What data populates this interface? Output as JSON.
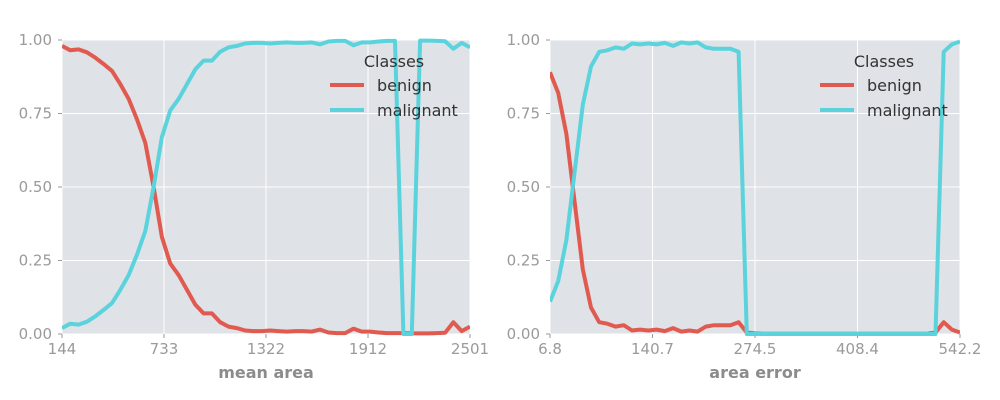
{
  "colors": {
    "plot_background": "#dfe2e6",
    "grid": "#ffffff",
    "tick_text": "#9a9a9a",
    "benign": "#e05a4f",
    "malignant": "#5ad3dc"
  },
  "chart_data": [
    {
      "type": "line",
      "title": "",
      "xlabel": "mean area",
      "ylabel": "",
      "xlim": [
        144,
        2501
      ],
      "ylim": [
        0,
        1
      ],
      "xticks": [
        "144",
        "733",
        "1322",
        "1912",
        "2501"
      ],
      "yticks": [
        "0.00",
        "0.25",
        "0.50",
        "0.75",
        "1.00"
      ],
      "grid": true,
      "legend": {
        "title": "Classes",
        "placement": "top-right"
      },
      "series": [
        {
          "name": "benign",
          "x": [
            144,
            192,
            240,
            288,
            336,
            385,
            433,
            481,
            529,
            577,
            625,
            673,
            721,
            769,
            818,
            866,
            914,
            962,
            1010,
            1058,
            1106,
            1154,
            1202,
            1250,
            1299,
            1347,
            1395,
            1443,
            1491,
            1539,
            1587,
            1635,
            1683,
            1732,
            1780,
            1828,
            1876,
            1924,
            1972,
            2020,
            2068,
            2116,
            2165,
            2213,
            2261,
            2309,
            2357,
            2405,
            2453,
            2501
          ],
          "y": [
            0.98,
            0.965,
            0.968,
            0.958,
            0.94,
            0.918,
            0.895,
            0.85,
            0.8,
            0.73,
            0.65,
            0.5,
            0.33,
            0.24,
            0.2,
            0.15,
            0.1,
            0.07,
            0.07,
            0.04,
            0.025,
            0.02,
            0.012,
            0.01,
            0.01,
            0.012,
            0.01,
            0.008,
            0.01,
            0.01,
            0.008,
            0.015,
            0.005,
            0.003,
            0.003,
            0.018,
            0.008,
            0.008,
            0.005,
            0.003,
            0.003,
            0.003,
            0.002,
            0.002,
            0.002,
            0.003,
            0.004,
            0.04,
            0.01,
            0.025
          ]
        },
        {
          "name": "malignant",
          "x": [
            144,
            192,
            240,
            288,
            336,
            385,
            433,
            481,
            529,
            577,
            625,
            673,
            721,
            769,
            818,
            866,
            914,
            962,
            1010,
            1058,
            1106,
            1154,
            1202,
            1250,
            1299,
            1347,
            1395,
            1443,
            1491,
            1539,
            1587,
            1635,
            1683,
            1732,
            1780,
            1828,
            1876,
            1924,
            1972,
            2020,
            2068,
            2116,
            2165,
            2213,
            2261,
            2309,
            2357,
            2405,
            2453,
            2501
          ],
          "y": [
            0.02,
            0.035,
            0.032,
            0.042,
            0.06,
            0.082,
            0.105,
            0.15,
            0.2,
            0.27,
            0.35,
            0.5,
            0.67,
            0.76,
            0.8,
            0.85,
            0.9,
            0.93,
            0.93,
            0.96,
            0.975,
            0.98,
            0.988,
            0.99,
            0.99,
            0.988,
            0.99,
            0.992,
            0.99,
            0.99,
            0.992,
            0.985,
            0.995,
            0.997,
            0.997,
            0.982,
            0.992,
            0.992,
            0.995,
            0.997,
            0.997,
            0,
            0,
            0.998,
            0.998,
            0.997,
            0.996,
            0.97,
            0.99,
            0.975
          ]
        }
      ]
    },
    {
      "type": "line",
      "title": "",
      "xlabel": "area error",
      "ylabel": "",
      "xlim": [
        6.8,
        542.2
      ],
      "ylim": [
        0,
        1
      ],
      "xticks": [
        "6.8",
        "140.7",
        "274.5",
        "408.4",
        "542.2"
      ],
      "yticks": [
        "0.00",
        "0.25",
        "0.50",
        "0.75",
        "1.00"
      ],
      "grid": true,
      "legend": {
        "title": "Classes",
        "placement": "top-right"
      },
      "series": [
        {
          "name": "benign",
          "x": [
            6.8,
            17.5,
            28.2,
            38.9,
            49.6,
            60.4,
            71.1,
            81.8,
            92.5,
            103.2,
            113.9,
            124.6,
            135.3,
            146.0,
            156.7,
            167.5,
            178.2,
            188.9,
            199.6,
            210.3,
            221.0,
            231.7,
            242.4,
            253.1,
            263.8,
            274.5,
            285.3,
            296.0,
            306.7,
            317.4,
            328.1,
            338.8,
            349.5,
            360.2,
            370.9,
            381.6,
            392.3,
            403.1,
            413.8,
            424.5,
            435.2,
            445.9,
            456.6,
            467.3,
            478.0,
            488.7,
            499.4,
            510.2,
            520.9,
            531.6,
            542.2
          ],
          "y": [
            0.89,
            0.82,
            0.68,
            0.45,
            0.22,
            0.09,
            0.04,
            0.035,
            0.025,
            0.03,
            0.012,
            0.015,
            0.012,
            0.015,
            0.01,
            0.02,
            0.008,
            0.012,
            0.008,
            0.025,
            0.03,
            0.03,
            0.03,
            0.04,
            0.005,
            0.002,
            0.001,
            0.001,
            0.001,
            0.001,
            0.001,
            0.001,
            0.001,
            0.001,
            0.001,
            0.001,
            0.001,
            0.001,
            0.001,
            0.001,
            0.001,
            0.001,
            0.001,
            0.001,
            0.001,
            0.001,
            0.001,
            0.005,
            0.04,
            0.015,
            0.005
          ]
        },
        {
          "name": "malignant",
          "x": [
            6.8,
            17.5,
            28.2,
            38.9,
            49.6,
            60.4,
            71.1,
            81.8,
            92.5,
            103.2,
            113.9,
            124.6,
            135.3,
            146.0,
            156.7,
            167.5,
            178.2,
            188.9,
            199.6,
            210.3,
            221.0,
            231.7,
            242.4,
            253.1,
            263.8,
            274.5,
            285.3,
            296.0,
            306.7,
            317.4,
            328.1,
            338.8,
            349.5,
            360.2,
            370.9,
            381.6,
            392.3,
            403.1,
            413.8,
            424.5,
            435.2,
            445.9,
            456.6,
            467.3,
            478.0,
            488.7,
            499.4,
            510.2,
            520.9,
            531.6,
            542.2
          ],
          "y": [
            0.11,
            0.18,
            0.32,
            0.55,
            0.78,
            0.91,
            0.96,
            0.965,
            0.975,
            0.97,
            0.988,
            0.985,
            0.988,
            0.985,
            0.99,
            0.98,
            0.992,
            0.988,
            0.992,
            0.975,
            0.97,
            0.97,
            0.97,
            0.96,
            0,
            0,
            0,
            0,
            0,
            0,
            0,
            0,
            0,
            0,
            0,
            0,
            0,
            0,
            0,
            0,
            0,
            0,
            0,
            0,
            0,
            0,
            0,
            0,
            0.96,
            0.985,
            0.995
          ]
        }
      ]
    }
  ]
}
